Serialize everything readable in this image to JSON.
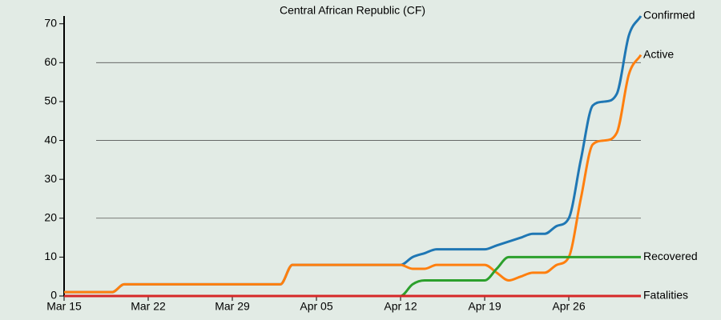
{
  "chart_data": {
    "type": "line",
    "title": "Central African Republic (CF)",
    "x": [
      "Mar 15",
      "Mar 16",
      "Mar 17",
      "Mar 18",
      "Mar 19",
      "Mar 20",
      "Mar 21",
      "Mar 22",
      "Mar 23",
      "Mar 24",
      "Mar 25",
      "Mar 26",
      "Mar 27",
      "Mar 28",
      "Mar 29",
      "Mar 30",
      "Mar 31",
      "Apr 01",
      "Apr 02",
      "Apr 03",
      "Apr 04",
      "Apr 05",
      "Apr 06",
      "Apr 07",
      "Apr 08",
      "Apr 09",
      "Apr 10",
      "Apr 11",
      "Apr 12",
      "Apr 13",
      "Apr 14",
      "Apr 15",
      "Apr 16",
      "Apr 17",
      "Apr 18",
      "Apr 19",
      "Apr 20",
      "Apr 21",
      "Apr 22",
      "Apr 23",
      "Apr 24",
      "Apr 25",
      "Apr 26",
      "Apr 27",
      "Apr 28",
      "Apr 29",
      "Apr 30",
      "May 01",
      "May 02"
    ],
    "xticks": [
      "Mar 15",
      "Mar 22",
      "Mar 29",
      "Apr 05",
      "Apr 12",
      "Apr 19",
      "Apr 26"
    ],
    "series": [
      {
        "name": "Confirmed",
        "color": "#1f77b4",
        "values": [
          1,
          1,
          1,
          1,
          1,
          3,
          3,
          3,
          3,
          3,
          3,
          3,
          3,
          3,
          3,
          3,
          3,
          3,
          3,
          8,
          8,
          8,
          8,
          8,
          8,
          8,
          8,
          8,
          8,
          10,
          11,
          12,
          12,
          12,
          12,
          12,
          13,
          14,
          15,
          16,
          16,
          18,
          20,
          35,
          49,
          50,
          52,
          67,
          72
        ]
      },
      {
        "name": "Active",
        "color": "#ff7f0e",
        "values": [
          1,
          1,
          1,
          1,
          1,
          3,
          3,
          3,
          3,
          3,
          3,
          3,
          3,
          3,
          3,
          3,
          3,
          3,
          3,
          8,
          8,
          8,
          8,
          8,
          8,
          8,
          8,
          8,
          8,
          7,
          7,
          8,
          8,
          8,
          8,
          8,
          6,
          4,
          5,
          6,
          6,
          8,
          10,
          25,
          39,
          40,
          42,
          57,
          62
        ]
      },
      {
        "name": "Recovered",
        "color": "#2ca02c",
        "values": [
          0,
          0,
          0,
          0,
          0,
          0,
          0,
          0,
          0,
          0,
          0,
          0,
          0,
          0,
          0,
          0,
          0,
          0,
          0,
          0,
          0,
          0,
          0,
          0,
          0,
          0,
          0,
          0,
          0,
          3,
          4,
          4,
          4,
          4,
          4,
          4,
          7,
          10,
          10,
          10,
          10,
          10,
          10,
          10,
          10,
          10,
          10,
          10,
          10
        ]
      },
      {
        "name": "Fatalities",
        "color": "#d62728",
        "values": [
          0,
          0,
          0,
          0,
          0,
          0,
          0,
          0,
          0,
          0,
          0,
          0,
          0,
          0,
          0,
          0,
          0,
          0,
          0,
          0,
          0,
          0,
          0,
          0,
          0,
          0,
          0,
          0,
          0,
          0,
          0,
          0,
          0,
          0,
          0,
          0,
          0,
          0,
          0,
          0,
          0,
          0,
          0,
          0,
          0,
          0,
          0,
          0,
          0
        ]
      }
    ],
    "ylim": [
      0,
      72
    ],
    "yticks": [
      0,
      10,
      20,
      30,
      40,
      50,
      60,
      70
    ],
    "ygrid": [
      20,
      40,
      60
    ]
  }
}
